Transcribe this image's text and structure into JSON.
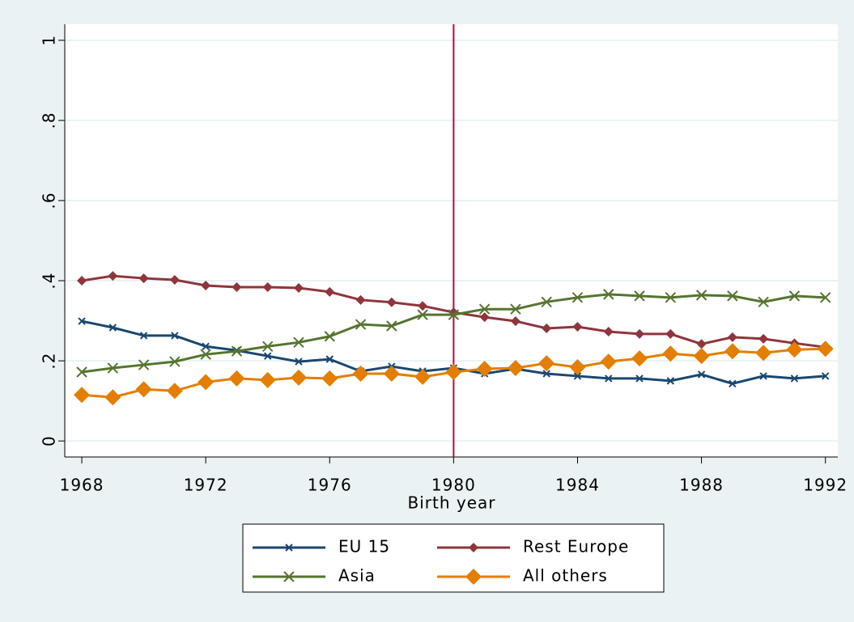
{
  "chart_data": {
    "type": "line",
    "x_label": "Birth year",
    "x": [
      1968,
      1969,
      1970,
      1971,
      1972,
      1973,
      1974,
      1975,
      1976,
      1977,
      1978,
      1979,
      1980,
      1981,
      1982,
      1983,
      1984,
      1985,
      1986,
      1987,
      1988,
      1989,
      1990,
      1991,
      1992
    ],
    "series": [
      {
        "name": "EU 15",
        "color": "#1a476f",
        "marker": "x-small",
        "values": [
          0.299,
          0.283,
          0.263,
          0.263,
          0.236,
          0.226,
          0.212,
          0.198,
          0.204,
          0.174,
          0.186,
          0.174,
          0.182,
          0.168,
          0.18,
          0.168,
          0.162,
          0.156,
          0.156,
          0.15,
          0.166,
          0.143,
          0.162,
          0.156,
          0.162
        ]
      },
      {
        "name": "Rest Europe",
        "color": "#90353b",
        "marker": "diamond-small",
        "values": [
          0.4,
          0.412,
          0.406,
          0.402,
          0.388,
          0.384,
          0.384,
          0.382,
          0.372,
          0.352,
          0.346,
          0.337,
          0.321,
          0.309,
          0.299,
          0.281,
          0.285,
          0.273,
          0.267,
          0.267,
          0.242,
          0.259,
          0.255,
          0.244,
          0.234
        ]
      },
      {
        "name": "Asia",
        "color": "#55752f",
        "marker": "x-large",
        "values": [
          0.172,
          0.182,
          0.19,
          0.198,
          0.216,
          0.224,
          0.236,
          0.246,
          0.261,
          0.291,
          0.287,
          0.315,
          0.315,
          0.329,
          0.329,
          0.347,
          0.358,
          0.366,
          0.362,
          0.358,
          0.364,
          0.362,
          0.347,
          0.362,
          0.358
        ]
      },
      {
        "name": "All others",
        "color": "#e37e00",
        "marker": "diamond-large",
        "values": [
          0.115,
          0.109,
          0.129,
          0.125,
          0.147,
          0.156,
          0.152,
          0.158,
          0.156,
          0.168,
          0.168,
          0.16,
          0.172,
          0.18,
          0.182,
          0.194,
          0.184,
          0.198,
          0.206,
          0.218,
          0.212,
          0.224,
          0.22,
          0.228,
          0.23
        ]
      }
    ],
    "xlim": [
      1967.45,
      1992.4
    ],
    "xticks": [
      1968,
      1972,
      1976,
      1980,
      1984,
      1988,
      1992
    ],
    "ylim": [
      -0.04,
      1.04
    ],
    "yticks": [
      0,
      {
        "value": 0.2,
        "label": ".2"
      },
      {
        "value": 0.4,
        "label": ".4"
      },
      {
        "value": 0.6,
        "label": ".6"
      },
      {
        "value": 0.8,
        "label": ".8"
      },
      1
    ],
    "grid": true,
    "xline": 1980,
    "xline_color": "#c10534",
    "legend": "bottom"
  }
}
